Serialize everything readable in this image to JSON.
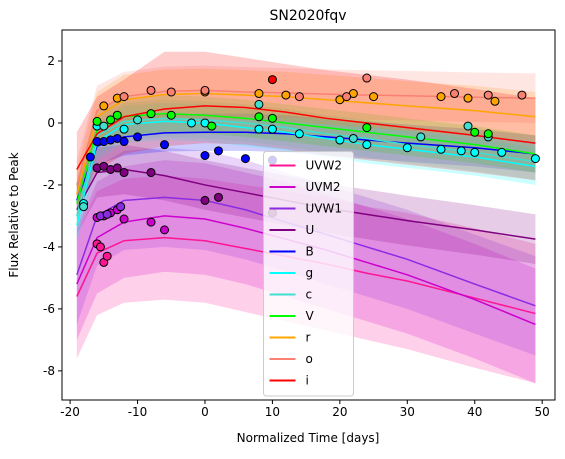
{
  "chart_data": {
    "type": "line",
    "title": "SN2020fqv",
    "xlabel": "Normalized Time [days]",
    "ylabel": "Flux Relative to Peak",
    "xlim": [
      -21.2,
      51.9
    ],
    "ylim": [
      -8.94,
      3.0
    ],
    "xticks": [
      -20,
      -10,
      0,
      10,
      20,
      30,
      40,
      50
    ],
    "yticks": [
      -8,
      -6,
      -4,
      -2,
      0,
      2
    ],
    "legend": "lower center",
    "x": [
      -19,
      -16,
      -12,
      -6,
      0,
      6,
      12,
      18,
      24,
      30,
      40,
      49
    ],
    "series": [
      {
        "name": "UVW2",
        "color": "#ff1493",
        "values": [
          -5.6,
          -4.2,
          -3.8,
          -3.7,
          -3.8,
          -4.05,
          -4.3,
          -4.55,
          -4.85,
          -5.1,
          -5.65,
          -6.15
        ],
        "lower": [
          -7.6,
          -6.2,
          -5.8,
          -5.7,
          -5.8,
          -6.1,
          -6.4,
          -6.7,
          -7.0,
          -7.3,
          -7.9,
          -8.4
        ],
        "upper": [
          -3.6,
          -2.2,
          -1.8,
          -1.7,
          -1.8,
          -2.0,
          -2.2,
          -2.4,
          -2.7,
          -2.9,
          -3.4,
          -3.9
        ],
        "obs_x": [
          -16,
          -15.5,
          -15,
          -14.5
        ],
        "obs_y": [
          -3.9,
          -4.0,
          -4.5,
          -4.3
        ]
      },
      {
        "name": "UVM2",
        "color": "#cc00cc",
        "values": [
          -5.2,
          -3.7,
          -3.2,
          -3.0,
          -3.1,
          -3.4,
          -3.75,
          -4.1,
          -4.5,
          -4.9,
          -5.7,
          -6.5
        ],
        "lower": [
          -7.0,
          -5.5,
          -5.0,
          -4.8,
          -4.9,
          -5.2,
          -5.6,
          -6.0,
          -6.4,
          -6.8,
          -7.6,
          -8.4
        ],
        "upper": [
          -3.4,
          -1.9,
          -1.4,
          -1.2,
          -1.3,
          -1.6,
          -1.9,
          -2.3,
          -2.7,
          -3.1,
          -3.9,
          -4.7
        ],
        "obs_x": [
          -16,
          -15,
          -14,
          -13,
          -12,
          -8,
          -6
        ],
        "obs_y": [
          -3.05,
          -3.0,
          -2.9,
          -2.8,
          -3.1,
          -3.2,
          -3.45
        ]
      },
      {
        "name": "UVW1",
        "color": "#8a2be2",
        "values": [
          -4.9,
          -3.0,
          -2.5,
          -2.4,
          -2.5,
          -2.8,
          -3.2,
          -3.6,
          -4.0,
          -4.4,
          -5.2,
          -5.9
        ],
        "lower": [
          -6.5,
          -4.6,
          -4.1,
          -4.0,
          -4.1,
          -4.4,
          -4.8,
          -5.2,
          -5.6,
          -6.0,
          -6.8,
          -7.5
        ],
        "upper": [
          -3.3,
          -1.4,
          -0.9,
          -0.8,
          -0.9,
          -1.2,
          -1.6,
          -2.0,
          -2.4,
          -2.8,
          -3.6,
          -4.3
        ],
        "obs_x": [
          -15.5,
          -14.5,
          -12.5
        ],
        "obs_y": [
          -3.0,
          -2.95,
          -2.7
        ]
      },
      {
        "name": "U",
        "color": "#800080",
        "values": [
          -2.8,
          -1.6,
          -1.5,
          -1.7,
          -2.0,
          -2.25,
          -2.5,
          -2.75,
          -2.95,
          -3.15,
          -3.45,
          -3.75
        ],
        "lower": [
          -3.6,
          -2.4,
          -2.3,
          -2.5,
          -2.8,
          -3.05,
          -3.3,
          -3.55,
          -3.75,
          -3.95,
          -4.25,
          -4.55
        ],
        "upper": [
          -2.0,
          -0.8,
          -0.7,
          -0.9,
          -1.2,
          -1.45,
          -1.7,
          -1.95,
          -2.15,
          -2.35,
          -2.65,
          -2.95
        ],
        "obs_x": [
          -16,
          -15,
          -14,
          -13,
          -12,
          -8,
          0,
          2,
          10
        ],
        "obs_y": [
          -1.45,
          -1.4,
          -1.5,
          -1.45,
          -1.6,
          -1.6,
          -2.5,
          -2.4,
          -2.9
        ]
      },
      {
        "name": "B",
        "color": "#0000ff",
        "values": [
          -2.5,
          -0.75,
          -0.45,
          -0.32,
          -0.3,
          -0.3,
          -0.35,
          -0.45,
          -0.55,
          -0.65,
          -0.8,
          -1.0
        ],
        "lower": [
          -3.1,
          -1.35,
          -1.05,
          -0.92,
          -0.9,
          -0.9,
          -0.95,
          -1.05,
          -1.15,
          -1.25,
          -1.4,
          -1.6
        ],
        "upper": [
          -1.9,
          -0.15,
          0.15,
          0.28,
          0.3,
          0.3,
          0.25,
          0.15,
          0.05,
          -0.05,
          -0.2,
          -0.4
        ],
        "obs_x": [
          -17,
          -16,
          -15,
          -14,
          -13,
          -12,
          -10,
          -6,
          0,
          2,
          6,
          10
        ],
        "obs_y": [
          -1.1,
          -0.6,
          -0.6,
          -0.55,
          -0.5,
          -0.6,
          -0.45,
          -0.7,
          -1.05,
          -0.9,
          -1.15,
          -1.2
        ]
      },
      {
        "name": "g",
        "color": "#00ffff",
        "values": [
          -3.3,
          -0.6,
          -0.05,
          0.05,
          0.0,
          -0.15,
          -0.3,
          -0.5,
          -0.7,
          -0.85,
          -1.1,
          -1.4
        ],
        "lower": [
          -3.9,
          -1.2,
          -0.65,
          -0.55,
          -0.6,
          -0.75,
          -0.9,
          -1.1,
          -1.3,
          -1.45,
          -1.7,
          -2.0
        ],
        "upper": [
          -2.7,
          0.0,
          0.55,
          0.65,
          0.6,
          0.45,
          0.3,
          0.1,
          -0.1,
          -0.25,
          -0.5,
          -0.8
        ],
        "obs_x": [
          -18,
          -16,
          -12,
          -2,
          0,
          8,
          10,
          14,
          20,
          24,
          30,
          35,
          38,
          40,
          44,
          49
        ],
        "obs_y": [
          -2.6,
          -0.1,
          -0.2,
          0.0,
          0.0,
          -0.2,
          -0.2,
          -0.35,
          -0.55,
          -0.7,
          -0.8,
          -0.85,
          -0.9,
          -0.95,
          -0.95,
          -1.15
        ]
      },
      {
        "name": "c",
        "color": "#40e0d0",
        "values": [
          -3.0,
          -0.4,
          0.05,
          0.15,
          0.1,
          0.0,
          -0.15,
          -0.35,
          -0.5,
          -0.7,
          -0.95,
          -1.25
        ],
        "lower": [
          -3.6,
          -1.0,
          -0.55,
          -0.45,
          -0.5,
          -0.6,
          -0.75,
          -0.95,
          -1.1,
          -1.3,
          -1.55,
          -1.85
        ],
        "upper": [
          -2.4,
          0.2,
          0.65,
          0.75,
          0.7,
          0.6,
          0.45,
          0.25,
          0.1,
          -0.1,
          -0.35,
          -0.65
        ],
        "obs_x": [
          -18,
          -15,
          -10,
          1,
          8,
          22,
          32,
          39,
          42
        ],
        "obs_y": [
          -2.7,
          -0.1,
          0.1,
          -0.1,
          0.6,
          -0.5,
          -0.45,
          -0.1,
          -0.45
        ]
      },
      {
        "name": "V",
        "color": "#00ff00",
        "values": [
          -2.6,
          -0.2,
          0.2,
          0.3,
          0.25,
          0.15,
          0.0,
          -0.15,
          -0.3,
          -0.45,
          -0.7,
          -1.0
        ],
        "lower": [
          -3.2,
          -0.8,
          -0.4,
          -0.3,
          -0.35,
          -0.45,
          -0.6,
          -0.75,
          -0.9,
          -1.05,
          -1.3,
          -1.6
        ],
        "upper": [
          -2.0,
          0.4,
          0.8,
          0.9,
          0.85,
          0.75,
          0.6,
          0.45,
          0.3,
          0.15,
          -0.1,
          -0.4
        ],
        "obs_x": [
          -16,
          -14,
          -13,
          -8,
          -5,
          1,
          8,
          10,
          24,
          40,
          42
        ],
        "obs_y": [
          0.05,
          0.1,
          0.25,
          0.3,
          0.25,
          -0.1,
          0.2,
          0.15,
          -0.15,
          -0.3,
          -0.35
        ]
      },
      {
        "name": "r",
        "color": "#ffa500",
        "values": [
          -2.3,
          0.2,
          0.75,
          0.92,
          0.95,
          0.9,
          0.85,
          0.75,
          0.65,
          0.55,
          0.4,
          0.2
        ],
        "lower": [
          -3.1,
          -0.6,
          -0.05,
          0.12,
          0.15,
          0.1,
          0.05,
          -0.05,
          -0.15,
          -0.25,
          -0.4,
          -0.6
        ],
        "upper": [
          -1.5,
          1.0,
          1.55,
          1.72,
          1.75,
          1.7,
          1.65,
          1.55,
          1.45,
          1.35,
          1.2,
          1.0
        ],
        "obs_x": [
          -15,
          -13,
          0,
          8,
          12,
          20,
          22,
          25,
          35,
          39,
          43
        ],
        "obs_y": [
          0.55,
          0.8,
          1.0,
          0.95,
          0.9,
          0.75,
          0.95,
          0.85,
          0.85,
          0.8,
          0.7
        ]
      },
      {
        "name": "o",
        "color": "#fa8072",
        "values": [
          -2.0,
          0.4,
          0.85,
          1.02,
          1.05,
          1.0,
          0.97,
          0.93,
          0.9,
          0.88,
          0.83,
          0.8
        ],
        "lower": [
          -2.8,
          -0.4,
          0.05,
          0.22,
          0.25,
          0.2,
          0.17,
          0.13,
          0.1,
          0.08,
          0.03,
          0.0
        ],
        "upper": [
          -1.2,
          1.2,
          1.65,
          1.82,
          1.85,
          1.8,
          1.77,
          1.73,
          1.7,
          1.68,
          1.63,
          1.6
        ],
        "obs_x": [
          -12,
          -8,
          -5,
          0,
          14,
          21,
          24,
          37,
          42,
          47
        ],
        "obs_y": [
          0.85,
          1.05,
          1.0,
          1.05,
          0.85,
          0.85,
          1.45,
          0.95,
          0.9,
          0.9
        ]
      },
      {
        "name": "i",
        "color": "#ff0000",
        "values": [
          -1.5,
          -0.35,
          0.2,
          0.45,
          0.55,
          0.5,
          0.35,
          0.15,
          0.0,
          -0.15,
          -0.4,
          -0.65
        ],
        "lower": [
          -2.7,
          -1.55,
          -1.0,
          -0.75,
          -0.65,
          -0.7,
          -0.85,
          -1.05,
          -1.2,
          -1.35,
          -1.6,
          -1.85
        ],
        "upper": [
          -0.3,
          0.85,
          1.4,
          2.3,
          2.3,
          2.1,
          1.9,
          1.7,
          1.55,
          1.4,
          1.1,
          0.8
        ],
        "obs_x": [
          10
        ],
        "obs_y": [
          1.4
        ]
      }
    ]
  }
}
